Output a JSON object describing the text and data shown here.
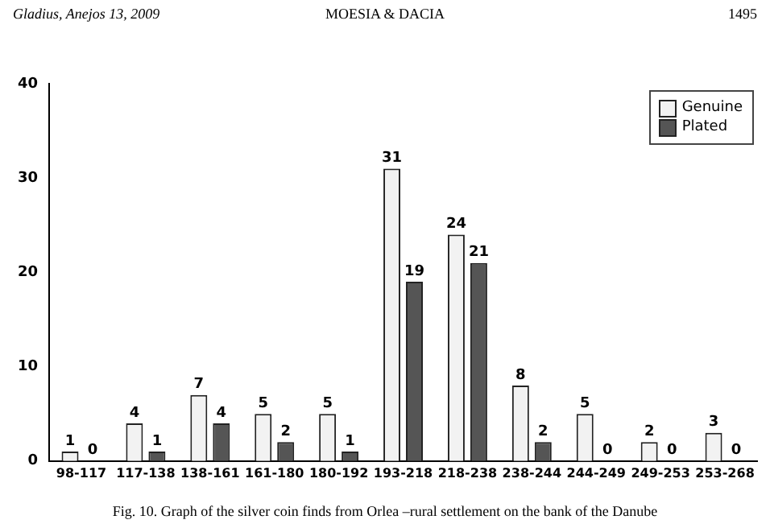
{
  "chart_data": {
    "type": "bar",
    "categories": [
      "98-117",
      "117-138",
      "138-161",
      "161-180",
      "180-192",
      "193-218",
      "218-238",
      "238-244",
      "244-249",
      "249-253",
      "253-268"
    ],
    "series": [
      {
        "name": "Genuine",
        "color": "#f2f2f2",
        "values": [
          1,
          4,
          7,
          5,
          5,
          31,
          24,
          8,
          5,
          2,
          3
        ]
      },
      {
        "name": "Plated",
        "color": "#555555",
        "values": [
          0,
          1,
          4,
          2,
          1,
          19,
          21,
          2,
          0,
          0,
          0
        ]
      }
    ],
    "ylim": [
      0,
      40
    ],
    "yticks": [
      0,
      10,
      20,
      30,
      40
    ],
    "grid": false,
    "legend": "top right",
    "data_labels": true,
    "annotations": [
      "Gladius, Anejos 13, 2009",
      "MOESIA & DACIA",
      "1495",
      "Fig. 10. Graph of the silver coin finds from Orlea –rural settlement on the bank of the Danube"
    ]
  }
}
